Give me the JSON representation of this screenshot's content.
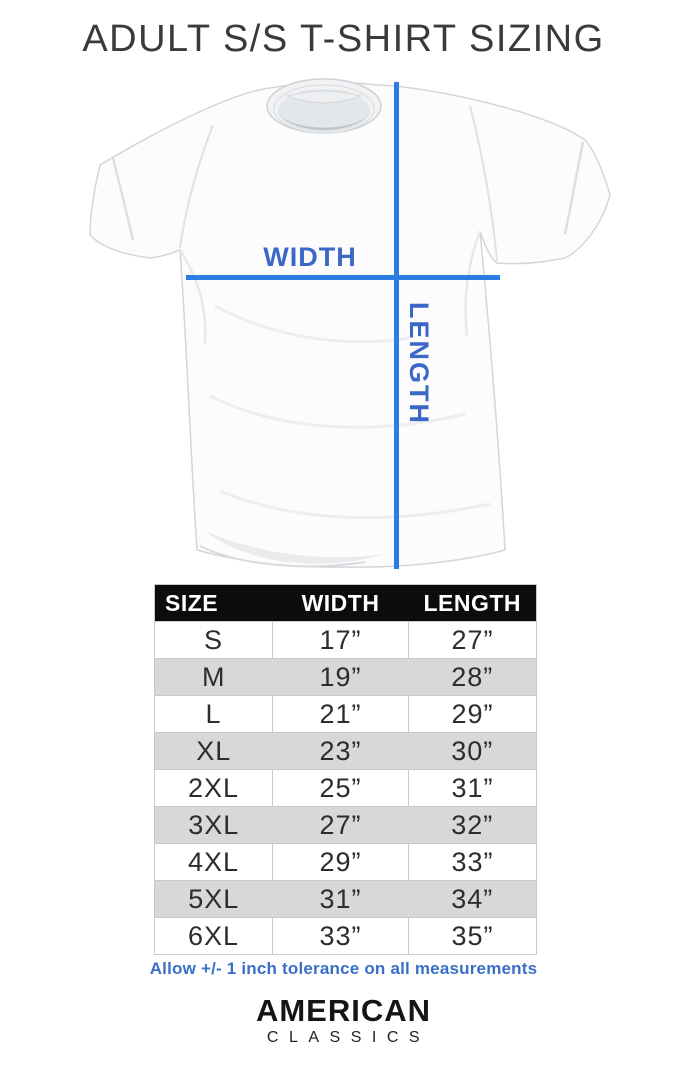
{
  "title": "ADULT S/S T-SHIRT SIZING",
  "diagram": {
    "width_label": "WIDTH",
    "length_label": "LENGTH"
  },
  "size_table": {
    "columns": [
      "SIZE",
      "WIDTH",
      "LENGTH"
    ],
    "rows": [
      {
        "size": "S",
        "width": "17”",
        "length": "27”"
      },
      {
        "size": "M",
        "width": "19”",
        "length": "28”"
      },
      {
        "size": "L",
        "width": "21”",
        "length": "29”"
      },
      {
        "size": "XL",
        "width": "23”",
        "length": "30”"
      },
      {
        "size": "2XL",
        "width": "25”",
        "length": "31”"
      },
      {
        "size": "3XL",
        "width": "27”",
        "length": "32”"
      },
      {
        "size": "4XL",
        "width": "29”",
        "length": "33”"
      },
      {
        "size": "5XL",
        "width": "31”",
        "length": "34”"
      },
      {
        "size": "6XL",
        "width": "33”",
        "length": "35”"
      }
    ]
  },
  "tolerance_note": "Allow +/- 1 inch tolerance on all measurements",
  "brand": {
    "line1": "AMERICAN",
    "line2": "CLASSICS"
  },
  "colors": {
    "measure_line_blue": "#2b7de2",
    "label_blue": "#3b68c6",
    "note_blue": "#3a6fc8",
    "header_bg": "#0c0c0c",
    "row_alt_gray": "#d8d8d8"
  }
}
